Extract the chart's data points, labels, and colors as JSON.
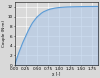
{
  "title": "",
  "xlabel": "χ [-]",
  "ylabel": "Couple (N·m)",
  "xlim": [
    0,
    1.875
  ],
  "ylim": [
    0,
    13
  ],
  "xticks": [
    0,
    0.25,
    0.5,
    0.75,
    1.0,
    1.25,
    1.5,
    1.75
  ],
  "yticks": [
    0,
    2,
    4,
    6,
    8,
    10,
    12
  ],
  "line_color": "#5b9bd5",
  "fill_color": "#aec8e8",
  "background_color": "#d9d9d9",
  "curve_x": [
    0.0,
    0.03,
    0.06,
    0.09,
    0.12,
    0.15,
    0.18,
    0.21,
    0.25,
    0.3,
    0.35,
    0.4,
    0.45,
    0.5,
    0.55,
    0.6,
    0.65,
    0.7,
    0.75,
    0.8,
    0.9,
    1.0,
    1.1,
    1.2,
    1.3,
    1.4,
    1.5,
    1.6,
    1.7,
    1.875
  ],
  "curve_y": [
    0.0,
    0.9,
    1.7,
    2.5,
    3.2,
    3.9,
    4.6,
    5.2,
    6.0,
    7.0,
    7.9,
    8.7,
    9.3,
    9.9,
    10.3,
    10.7,
    11.0,
    11.2,
    11.4,
    11.55,
    11.75,
    11.88,
    11.95,
    12.0,
    12.03,
    12.05,
    12.07,
    12.08,
    12.09,
    12.1
  ]
}
